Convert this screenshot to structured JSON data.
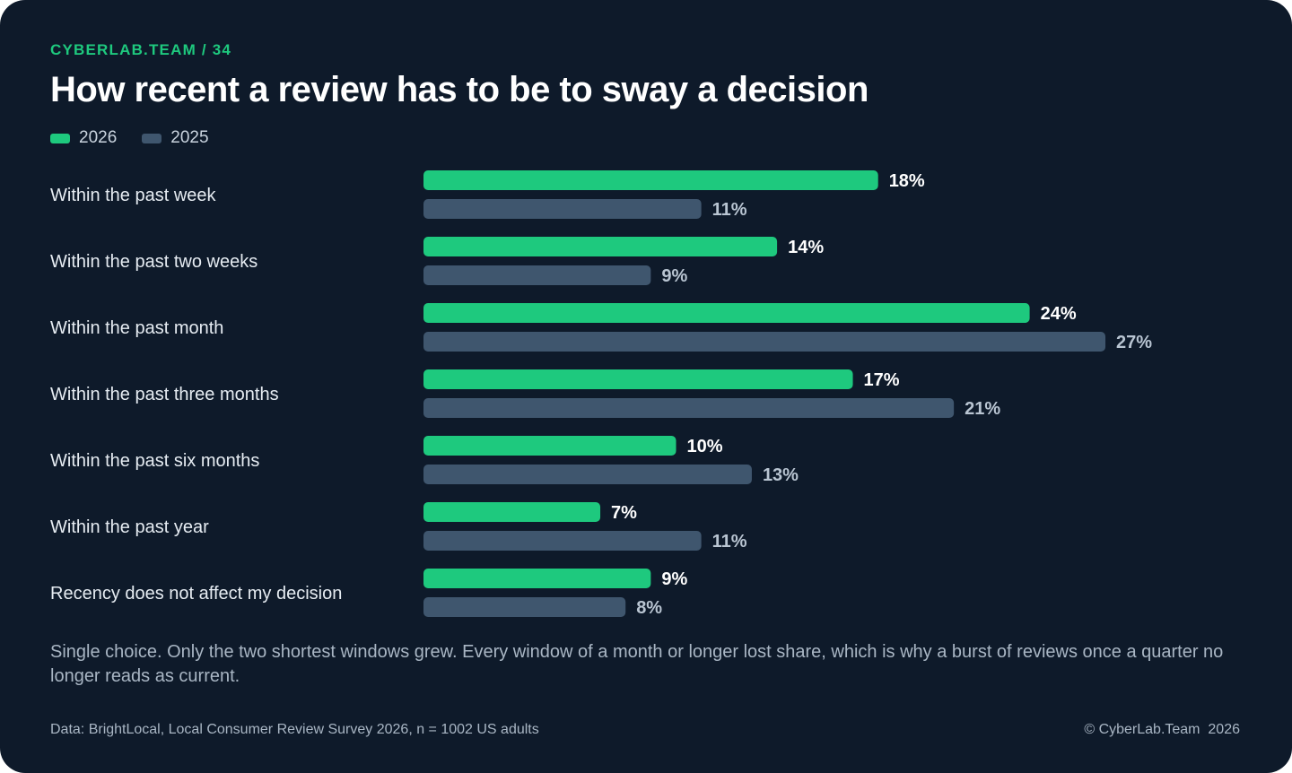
{
  "kicker": "CYBERLAB.TEAM / 34",
  "title": "How recent a review has to be to sway a decision",
  "colors": {
    "series_2026": "#1ec97e",
    "series_2025": "#3f566e",
    "label_2026": "#ffffff",
    "label_2025": "#b9c5d2",
    "background": "#0e1a2a"
  },
  "chart_data": {
    "type": "bar",
    "orientation": "horizontal",
    "categories": [
      "Within the past week",
      "Within the past two weeks",
      "Within the past month",
      "Within the past three months",
      "Within the past six months",
      "Within the past year",
      "Recency does not affect my decision"
    ],
    "series": [
      {
        "name": "2026",
        "values": [
          18,
          14,
          24,
          17,
          10,
          7,
          9
        ]
      },
      {
        "name": "2025",
        "values": [
          11,
          9,
          27,
          21,
          13,
          11,
          8
        ]
      }
    ],
    "value_suffix": "%",
    "xlim": [
      0,
      27
    ],
    "grid": false,
    "legend_position": "top-left"
  },
  "note": "Single choice. Only the two shortest windows grew. Every window of a month or longer lost share, which is why a burst of reviews once a quarter no longer reads as current.",
  "source": "Data: BrightLocal, Local Consumer Review Survey 2026, n = 1002 US adults",
  "copyright": "© CyberLab.Team  2026"
}
